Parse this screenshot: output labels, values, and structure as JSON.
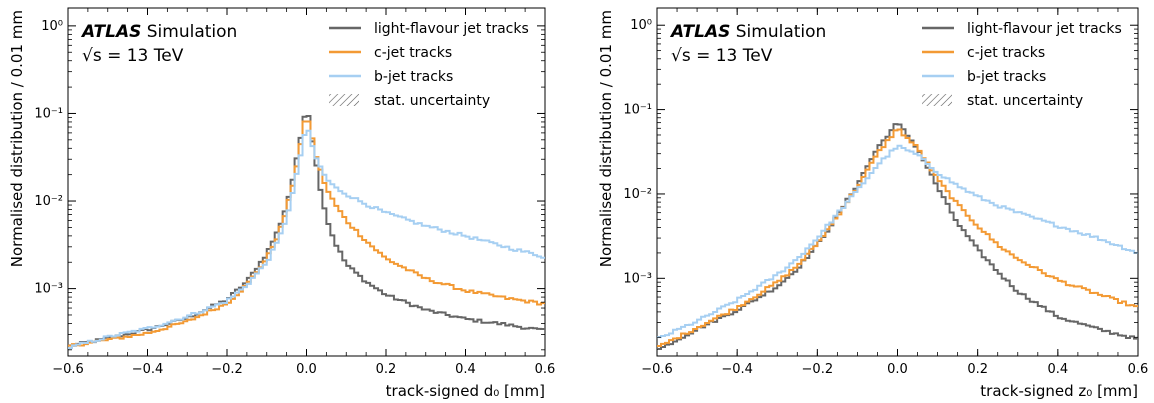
{
  "panels": [
    {
      "atlas_bold": "ATLAS",
      "atlas_rest": "Simulation",
      "energy_label": "√s = 13 TeV",
      "xlabel": "track-signed d₀ [mm]",
      "ylabel": "Normalised distribution / 0.01 mm"
    },
    {
      "atlas_bold": "ATLAS",
      "atlas_rest": "Simulation",
      "energy_label": "√s = 13 TeV",
      "xlabel": "track-signed z₀ [mm]",
      "ylabel": "Normalised distribution / 0.01 mm"
    }
  ],
  "legend": [
    {
      "label": "light-flavour jet tracks",
      "color": "#666666"
    },
    {
      "label": "c-jet tracks",
      "color": "#f39a34"
    },
    {
      "label": "b-jet tracks",
      "color": "#a6cff2"
    },
    {
      "label": "stat. uncertainty",
      "hatch": true
    }
  ],
  "chart_data": [
    {
      "type": "line",
      "step": true,
      "xlabel": "track-signed d₀ [mm]",
      "ylabel": "Normalised distribution / 0.01 mm",
      "xlim": [
        -0.6,
        0.6
      ],
      "ylim": [
        0.00017,
        1.6
      ],
      "yscale": "log",
      "x_ticks": [
        "−0.6",
        "−0.4",
        "−0.2",
        "0.0",
        "0.2",
        "0.4",
        "0.6"
      ],
      "y_ticks": [
        "10⁻³",
        "10⁻²",
        "10⁻¹",
        "10⁰"
      ],
      "bin_width": 0.01,
      "series": [
        {
          "name": "light-flavour jet tracks",
          "color": "#666666",
          "x": [
            -0.6,
            -0.5,
            -0.4,
            -0.3,
            -0.2,
            -0.15,
            -0.1,
            -0.07,
            -0.05,
            -0.03,
            -0.02,
            -0.01,
            0.0,
            0.01,
            0.02,
            0.03,
            0.05,
            0.07,
            0.1,
            0.15,
            0.2,
            0.3,
            0.4,
            0.5,
            0.6
          ],
          "y": [
            0.00022,
            0.00027,
            0.00034,
            0.00046,
            0.00075,
            0.0012,
            0.0025,
            0.0048,
            0.009,
            0.022,
            0.04,
            0.07,
            0.13,
            0.07,
            0.035,
            0.018,
            0.0065,
            0.0035,
            0.0019,
            0.0012,
            0.00085,
            0.00057,
            0.00045,
            0.00039,
            0.00033
          ]
        },
        {
          "name": "c-jet tracks",
          "color": "#f39a34",
          "x": [
            -0.6,
            -0.5,
            -0.4,
            -0.3,
            -0.2,
            -0.15,
            -0.1,
            -0.07,
            -0.05,
            -0.03,
            -0.02,
            -0.01,
            0.0,
            0.01,
            0.02,
            0.03,
            0.05,
            0.07,
            0.1,
            0.15,
            0.2,
            0.3,
            0.4,
            0.5,
            0.6
          ],
          "y": [
            0.00022,
            0.00026,
            0.00031,
            0.00042,
            0.00068,
            0.0011,
            0.0022,
            0.0042,
            0.008,
            0.019,
            0.034,
            0.058,
            0.105,
            0.065,
            0.04,
            0.026,
            0.014,
            0.0095,
            0.006,
            0.0035,
            0.0022,
            0.0013,
            0.00095,
            0.00078,
            0.00067
          ]
        },
        {
          "name": "b-jet tracks",
          "color": "#a6cff2",
          "x": [
            -0.6,
            -0.5,
            -0.4,
            -0.3,
            -0.2,
            -0.15,
            -0.1,
            -0.07,
            -0.05,
            -0.03,
            -0.02,
            -0.01,
            0.0,
            0.01,
            0.02,
            0.03,
            0.05,
            0.07,
            0.1,
            0.15,
            0.2,
            0.3,
            0.4,
            0.5,
            0.6
          ],
          "y": [
            0.00021,
            0.00028,
            0.00035,
            0.00048,
            0.00072,
            0.0011,
            0.002,
            0.0036,
            0.0065,
            0.015,
            0.026,
            0.043,
            0.075,
            0.05,
            0.035,
            0.027,
            0.018,
            0.0145,
            0.012,
            0.0092,
            0.0073,
            0.0052,
            0.004,
            0.003,
            0.0023
          ]
        }
      ]
    },
    {
      "type": "line",
      "step": true,
      "xlabel": "track-signed z₀ [mm]",
      "ylabel": "Normalised distribution / 0.01 mm",
      "xlim": [
        -0.6,
        0.6
      ],
      "ylim": [
        0.00012,
        1.6
      ],
      "yscale": "log",
      "x_ticks": [
        "−0.6",
        "−0.4",
        "−0.2",
        "0.0",
        "0.2",
        "0.4",
        "0.6"
      ],
      "y_ticks": [
        "10⁻³",
        "10⁻²",
        "10⁻¹",
        "10⁰"
      ],
      "bin_width": 0.01,
      "series": [
        {
          "name": "light-flavour jet tracks",
          "color": "#666666",
          "x": [
            -0.6,
            -0.5,
            -0.4,
            -0.3,
            -0.25,
            -0.2,
            -0.15,
            -0.1,
            -0.05,
            0.0,
            0.05,
            0.1,
            0.15,
            0.2,
            0.25,
            0.3,
            0.4,
            0.5,
            0.6
          ],
          "y": [
            0.00014,
            0.00025,
            0.00042,
            0.0008,
            0.0013,
            0.0025,
            0.0055,
            0.013,
            0.035,
            0.07,
            0.035,
            0.012,
            0.0045,
            0.0022,
            0.0012,
            0.0007,
            0.00035,
            0.00025,
            0.00019
          ]
        },
        {
          "name": "c-jet tracks",
          "color": "#f39a34",
          "x": [
            -0.6,
            -0.5,
            -0.4,
            -0.3,
            -0.25,
            -0.2,
            -0.15,
            -0.1,
            -0.05,
            0.0,
            0.05,
            0.1,
            0.15,
            0.2,
            0.25,
            0.3,
            0.4,
            0.5,
            0.6
          ],
          "y": [
            0.00015,
            0.00026,
            0.00045,
            0.0009,
            0.0014,
            0.0026,
            0.0055,
            0.012,
            0.03,
            0.06,
            0.035,
            0.015,
            0.0075,
            0.0042,
            0.0025,
            0.0017,
            0.00095,
            0.00065,
            0.00045
          ]
        },
        {
          "name": "b-jet tracks",
          "color": "#a6cff2",
          "x": [
            -0.6,
            -0.5,
            -0.4,
            -0.3,
            -0.25,
            -0.2,
            -0.15,
            -0.1,
            -0.05,
            0.0,
            0.05,
            0.1,
            0.15,
            0.2,
            0.25,
            0.3,
            0.4,
            0.5,
            0.6
          ],
          "y": [
            0.00019,
            0.00031,
            0.00055,
            0.0011,
            0.0017,
            0.003,
            0.0058,
            0.011,
            0.022,
            0.037,
            0.029,
            0.018,
            0.0125,
            0.0093,
            0.0073,
            0.006,
            0.0042,
            0.003,
            0.002
          ]
        }
      ]
    }
  ]
}
